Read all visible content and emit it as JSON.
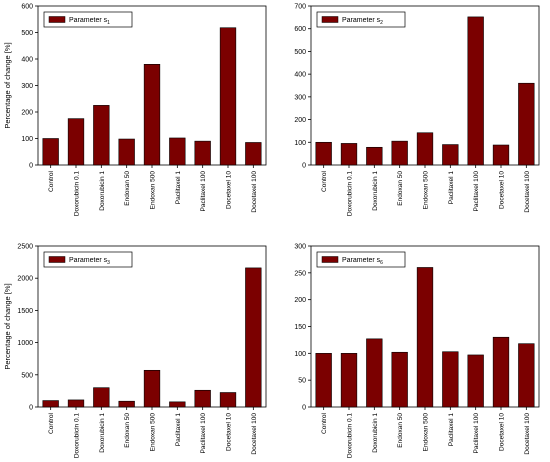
{
  "chart_data": [
    {
      "type": "bar",
      "categories": [
        "Control",
        "Doxorubicin 0.1",
        "Doxorubicin 1",
        "Endoxan 50",
        "Endoxan 500",
        "Paclitaxel 1",
        "Paclitaxel 100",
        "Docetaxel 10",
        "Docetaxel 100"
      ],
      "series": [
        {
          "name_main": "Parameter s",
          "name_sub": "1",
          "values": [
            100,
            175,
            225,
            98,
            380,
            102,
            90,
            518,
            85
          ]
        }
      ],
      "ylabel": "Percentage of change [%]",
      "ylim": [
        0,
        600
      ],
      "yticks": [
        0,
        100,
        200,
        300,
        400,
        500,
        600
      ],
      "legend": "top-left",
      "grid": false,
      "bar_color": "#7b0000"
    },
    {
      "type": "bar",
      "categories": [
        "Control",
        "Doxorubicin 0.1",
        "Doxorubicin 1",
        "Endoxan 50",
        "Endoxan 500",
        "Paclitaxel 1",
        "Paclitaxel 100",
        "Docetaxel 10",
        "Docetaxel 100"
      ],
      "series": [
        {
          "name_main": "Parameter s",
          "name_sub": "2",
          "values": [
            100,
            95,
            78,
            105,
            142,
            90,
            652,
            88,
            360
          ]
        }
      ],
      "ylabel": "",
      "ylim": [
        0,
        700
      ],
      "yticks": [
        0,
        100,
        200,
        300,
        400,
        500,
        600,
        700
      ],
      "legend": "top-left",
      "grid": false,
      "bar_color": "#7b0000"
    },
    {
      "type": "bar",
      "categories": [
        "Control",
        "Doxorubicin 0.1",
        "Doxorubicin 1",
        "Endoxan 50",
        "Endoxan 500",
        "Paclitaxel 1",
        "Paclitaxel 100",
        "Docetaxel 10",
        "Docetaxel 100"
      ],
      "series": [
        {
          "name_main": "Parameter s",
          "name_sub": "3",
          "values": [
            100,
            110,
            300,
            90,
            570,
            80,
            260,
            225,
            2160
          ]
        }
      ],
      "ylabel": "Percentage of change [%]",
      "ylim": [
        0,
        2500
      ],
      "yticks": [
        0,
        500,
        1000,
        1500,
        2000,
        2500
      ],
      "legend": "top-left",
      "grid": false,
      "bar_color": "#7b0000"
    },
    {
      "type": "bar",
      "categories": [
        "Control",
        "Doxorubicin 0.1",
        "Doxorubicin 1",
        "Endoxan 50",
        "Endoxan 500",
        "Paclitaxel 1",
        "Paclitaxel 100",
        "Docetaxel 10",
        "Docetaxel 100"
      ],
      "series": [
        {
          "name_main": "Parameter s",
          "name_sub": "6",
          "values": [
            100,
            100,
            127,
            102,
            260,
            103,
            97,
            130,
            118
          ]
        }
      ],
      "ylabel": "",
      "ylim": [
        0,
        300
      ],
      "yticks": [
        0,
        50,
        100,
        150,
        200,
        250,
        300
      ],
      "legend": "top-left",
      "grid": false,
      "bar_color": "#7b0000"
    }
  ]
}
